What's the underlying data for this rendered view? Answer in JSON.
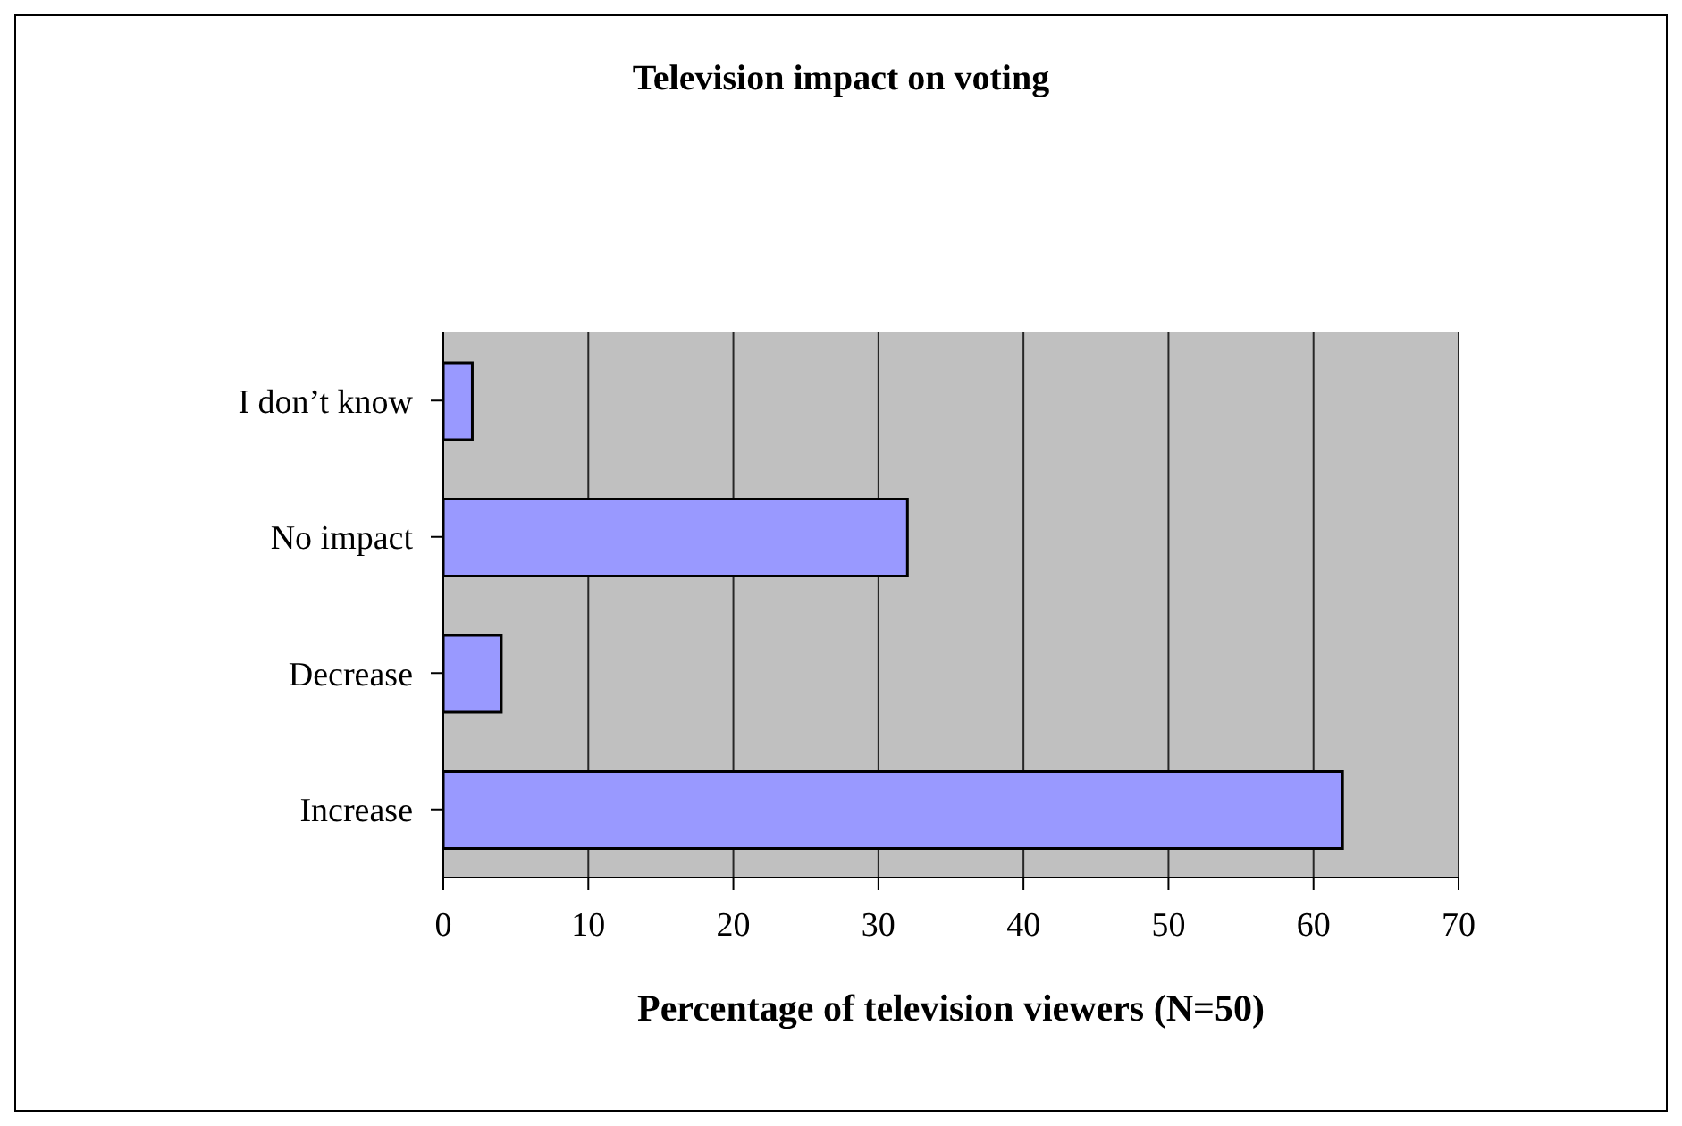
{
  "chart_data": {
    "type": "bar",
    "orientation": "horizontal",
    "title": "Television impact on voting",
    "xlabel": "Percentage of television viewers (N=50)",
    "categories": [
      "I don’t know",
      "No impact",
      "Decrease ",
      "Increase"
    ],
    "values": [
      2,
      32,
      4,
      62
    ],
    "color": "#9999ff",
    "xlim": [
      0,
      70
    ],
    "xticks": [
      0,
      10,
      20,
      30,
      40,
      50,
      60,
      70
    ],
    "grid": "x",
    "legend": false
  }
}
